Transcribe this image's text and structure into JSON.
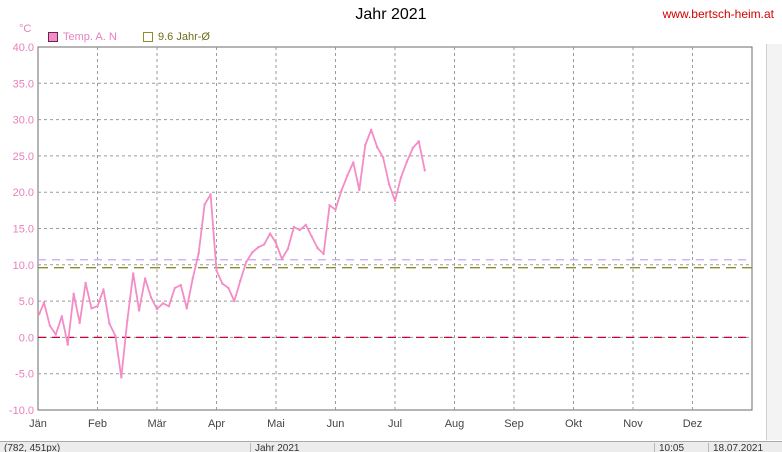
{
  "window": {
    "title": "Jahr 2021",
    "website": "www.bertsch-heim.at",
    "unit": "°C"
  },
  "legend": [
    {
      "label": "Temp. A. N",
      "color": "#f48cc6"
    },
    {
      "label": "9.6 Jahr-Ø",
      "color": "#8f8f2a"
    }
  ],
  "statusbar": {
    "left": "(782, 451px)",
    "mid": "Jahr 2021",
    "right1": "10:05",
    "right2": "18.07.2021"
  },
  "chart_data": {
    "type": "line",
    "title": "Jahr 2021",
    "ylabel": "°C",
    "ylim": [
      -10,
      40
    ],
    "ytick_labels": [
      "40.0",
      "35.0",
      "30.0",
      "25.0",
      "20.0",
      "15.0",
      "10.0",
      "5.0",
      "0.0",
      "-5.0",
      "-10.0"
    ],
    "yticks": [
      40,
      35,
      30,
      25,
      20,
      15,
      10,
      5,
      0,
      -5,
      -10
    ],
    "xlim": [
      0,
      12
    ],
    "x_ticks": [
      "Jän",
      "Feb",
      "Mär",
      "Apr",
      "Mai",
      "Jun",
      "Jul",
      "Aug",
      "Sep",
      "Okt",
      "Nov",
      "Dez"
    ],
    "grid": true,
    "series": [
      {
        "name": "Temp. A. N",
        "color": "#f48cc6",
        "x": [
          0.02,
          0.1,
          0.2,
          0.3,
          0.4,
          0.5,
          0.6,
          0.7,
          0.8,
          0.9,
          1.0,
          1.1,
          1.2,
          1.3,
          1.4,
          1.5,
          1.6,
          1.7,
          1.8,
          1.9,
          2.0,
          2.1,
          2.2,
          2.3,
          2.4,
          2.5,
          2.6,
          2.7,
          2.8,
          2.9,
          3.0,
          3.1,
          3.2,
          3.3,
          3.4,
          3.5,
          3.6,
          3.7,
          3.8,
          3.9,
          4.0,
          4.1,
          4.2,
          4.3,
          4.4,
          4.5,
          4.6,
          4.7,
          4.8,
          4.9,
          5.0,
          5.1,
          5.2,
          5.3,
          5.4,
          5.5,
          5.6,
          5.7,
          5.8,
          5.9,
          6.0,
          6.1,
          6.2,
          6.3,
          6.4,
          6.5
        ],
        "y": [
          3.2,
          4.8,
          1.6,
          0.4,
          2.9,
          -1.0,
          6.0,
          2.0,
          7.5,
          4.0,
          4.3,
          6.6,
          1.9,
          0.2,
          -5.5,
          2.3,
          8.8,
          3.7,
          8.1,
          5.5,
          3.9,
          4.7,
          4.3,
          6.8,
          7.2,
          4.0,
          8.1,
          11.6,
          18.3,
          19.7,
          9.2,
          7.4,
          6.8,
          5.0,
          7.8,
          10.4,
          11.7,
          12.4,
          12.8,
          14.3,
          13.0,
          10.8,
          12.2,
          15.2,
          14.8,
          15.5,
          13.9,
          12.3,
          11.5,
          18.2,
          17.6,
          20.2,
          22.3,
          24.1,
          20.3,
          26.5,
          28.6,
          26.2,
          24.8,
          21.1,
          18.8,
          22.0,
          24.2,
          26.1,
          27.0,
          23.0
        ]
      },
      {
        "name": "9.6 Jahr-Ø",
        "color": "#8f8f2a",
        "constant": 9.6
      }
    ],
    "reference_lines": [
      {
        "value": 10.7,
        "color": "#c8a6ec",
        "dash": true
      },
      {
        "value": 0,
        "color": "#cc0033",
        "dash": true
      }
    ]
  }
}
